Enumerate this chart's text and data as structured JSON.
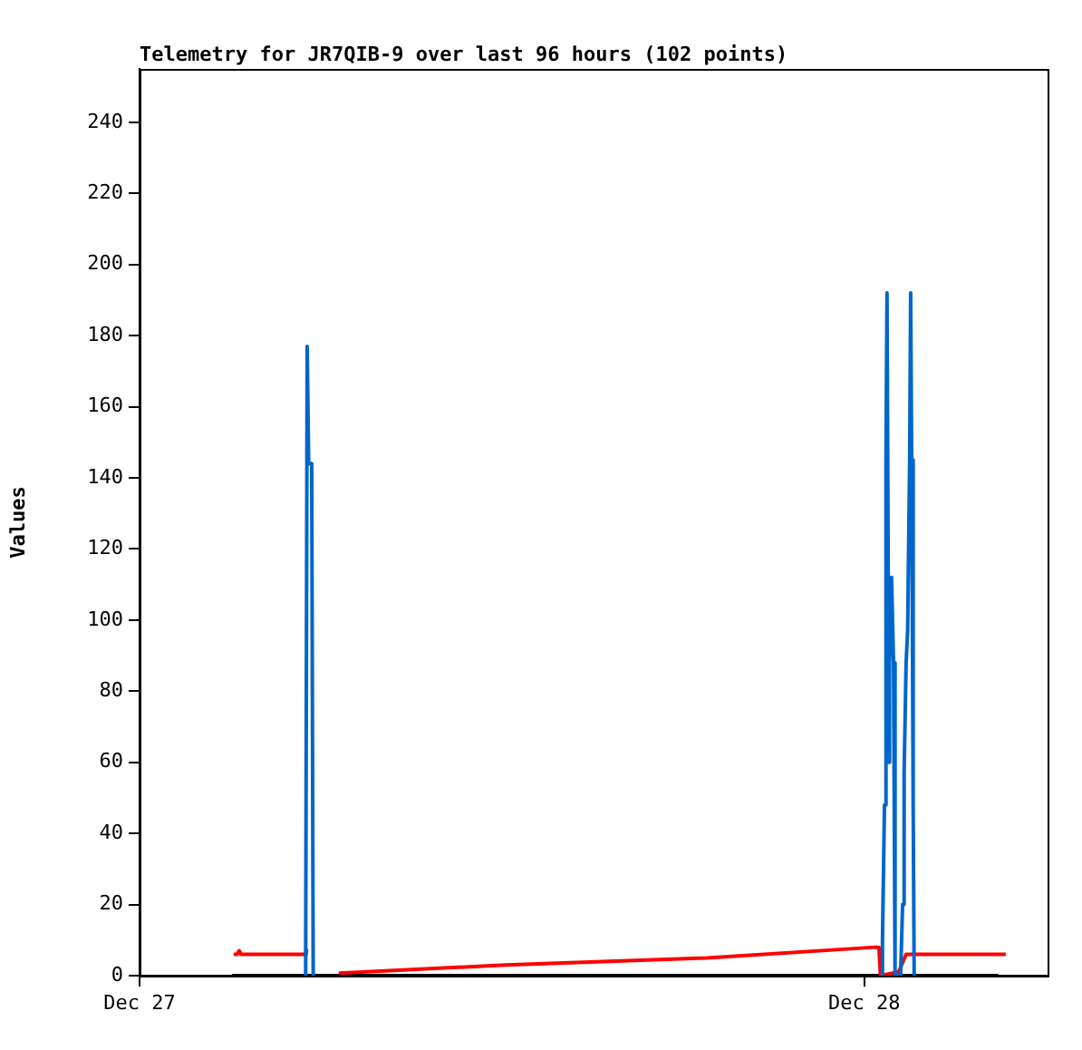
{
  "chart_data": {
    "type": "line",
    "title": "Telemetry for JR7QIB-9 over last 96 hours (102 points)",
    "ylabel": "Values",
    "xlim": [
      "--12-27T00:00",
      "--12-28T06:04"
    ],
    "xticks": [
      {
        "value": "--12-27",
        "label": "Dec 27"
      },
      {
        "value": "--12-28",
        "label": "Dec 28"
      }
    ],
    "ylim": [
      0,
      255
    ],
    "yticks": [
      0,
      20,
      40,
      60,
      80,
      100,
      120,
      140,
      160,
      180,
      200,
      220,
      240
    ],
    "grid": false,
    "legend": false,
    "marker": "none",
    "series": [
      {
        "color": "#000000",
        "x": [
          "--12-27T03:04",
          "--12-28T04:26"
        ],
        "values": [
          0,
          0
        ]
      },
      {
        "color": "#ff0000",
        "x": [
          "--12-27T03:07",
          "--12-27T03:14",
          "--12-27T03:18",
          "--12-27T03:22",
          "--12-27T05:28",
          "--12-27T05:31",
          "--12-27T05:35",
          "--12-27T06:00",
          "--12-27T06:36",
          "--12-27T12:07",
          "--12-27T18:47",
          "--12-28T00:22",
          "--12-28T00:29",
          "--12-28T00:32",
          "--12-28T01:08",
          "--12-28T01:23",
          "--12-28T04:41"
        ],
        "values": [
          6,
          6,
          7,
          6,
          6,
          7,
          7,
          null,
          0.7,
          3,
          5,
          8,
          8,
          0,
          1,
          6,
          6
        ]
      },
      {
        "color": "#0066cc",
        "x": [
          "--12-27T05:30",
          "--12-27T05:33",
          "--12-27T05:36",
          "--12-27T05:42",
          "--12-27T05:45",
          "--12-27T15:00",
          "--12-28T00:34",
          "--12-28T00:36",
          "--12-28T00:40",
          "--12-28T00:43",
          "--12-28T00:45",
          "--12-28T00:49",
          "--12-28T00:50",
          "--12-28T00:54",
          "--12-28T00:58",
          "--12-28T01:01",
          "--12-28T01:12",
          "--12-28T01:16",
          "--12-28T01:19",
          "--12-28T01:23",
          "--12-28T01:26",
          "--12-28T01:30",
          "--12-28T01:32",
          "--12-28T01:34",
          "--12-28T01:37",
          "--12-28T01:39"
        ],
        "values": [
          0,
          177,
          144,
          144,
          0,
          null,
          0,
          10,
          48,
          145,
          192,
          60,
          88,
          112,
          88,
          0,
          0,
          20,
          57,
          88,
          97,
          145,
          192,
          145,
          48,
          0
        ]
      }
    ]
  }
}
